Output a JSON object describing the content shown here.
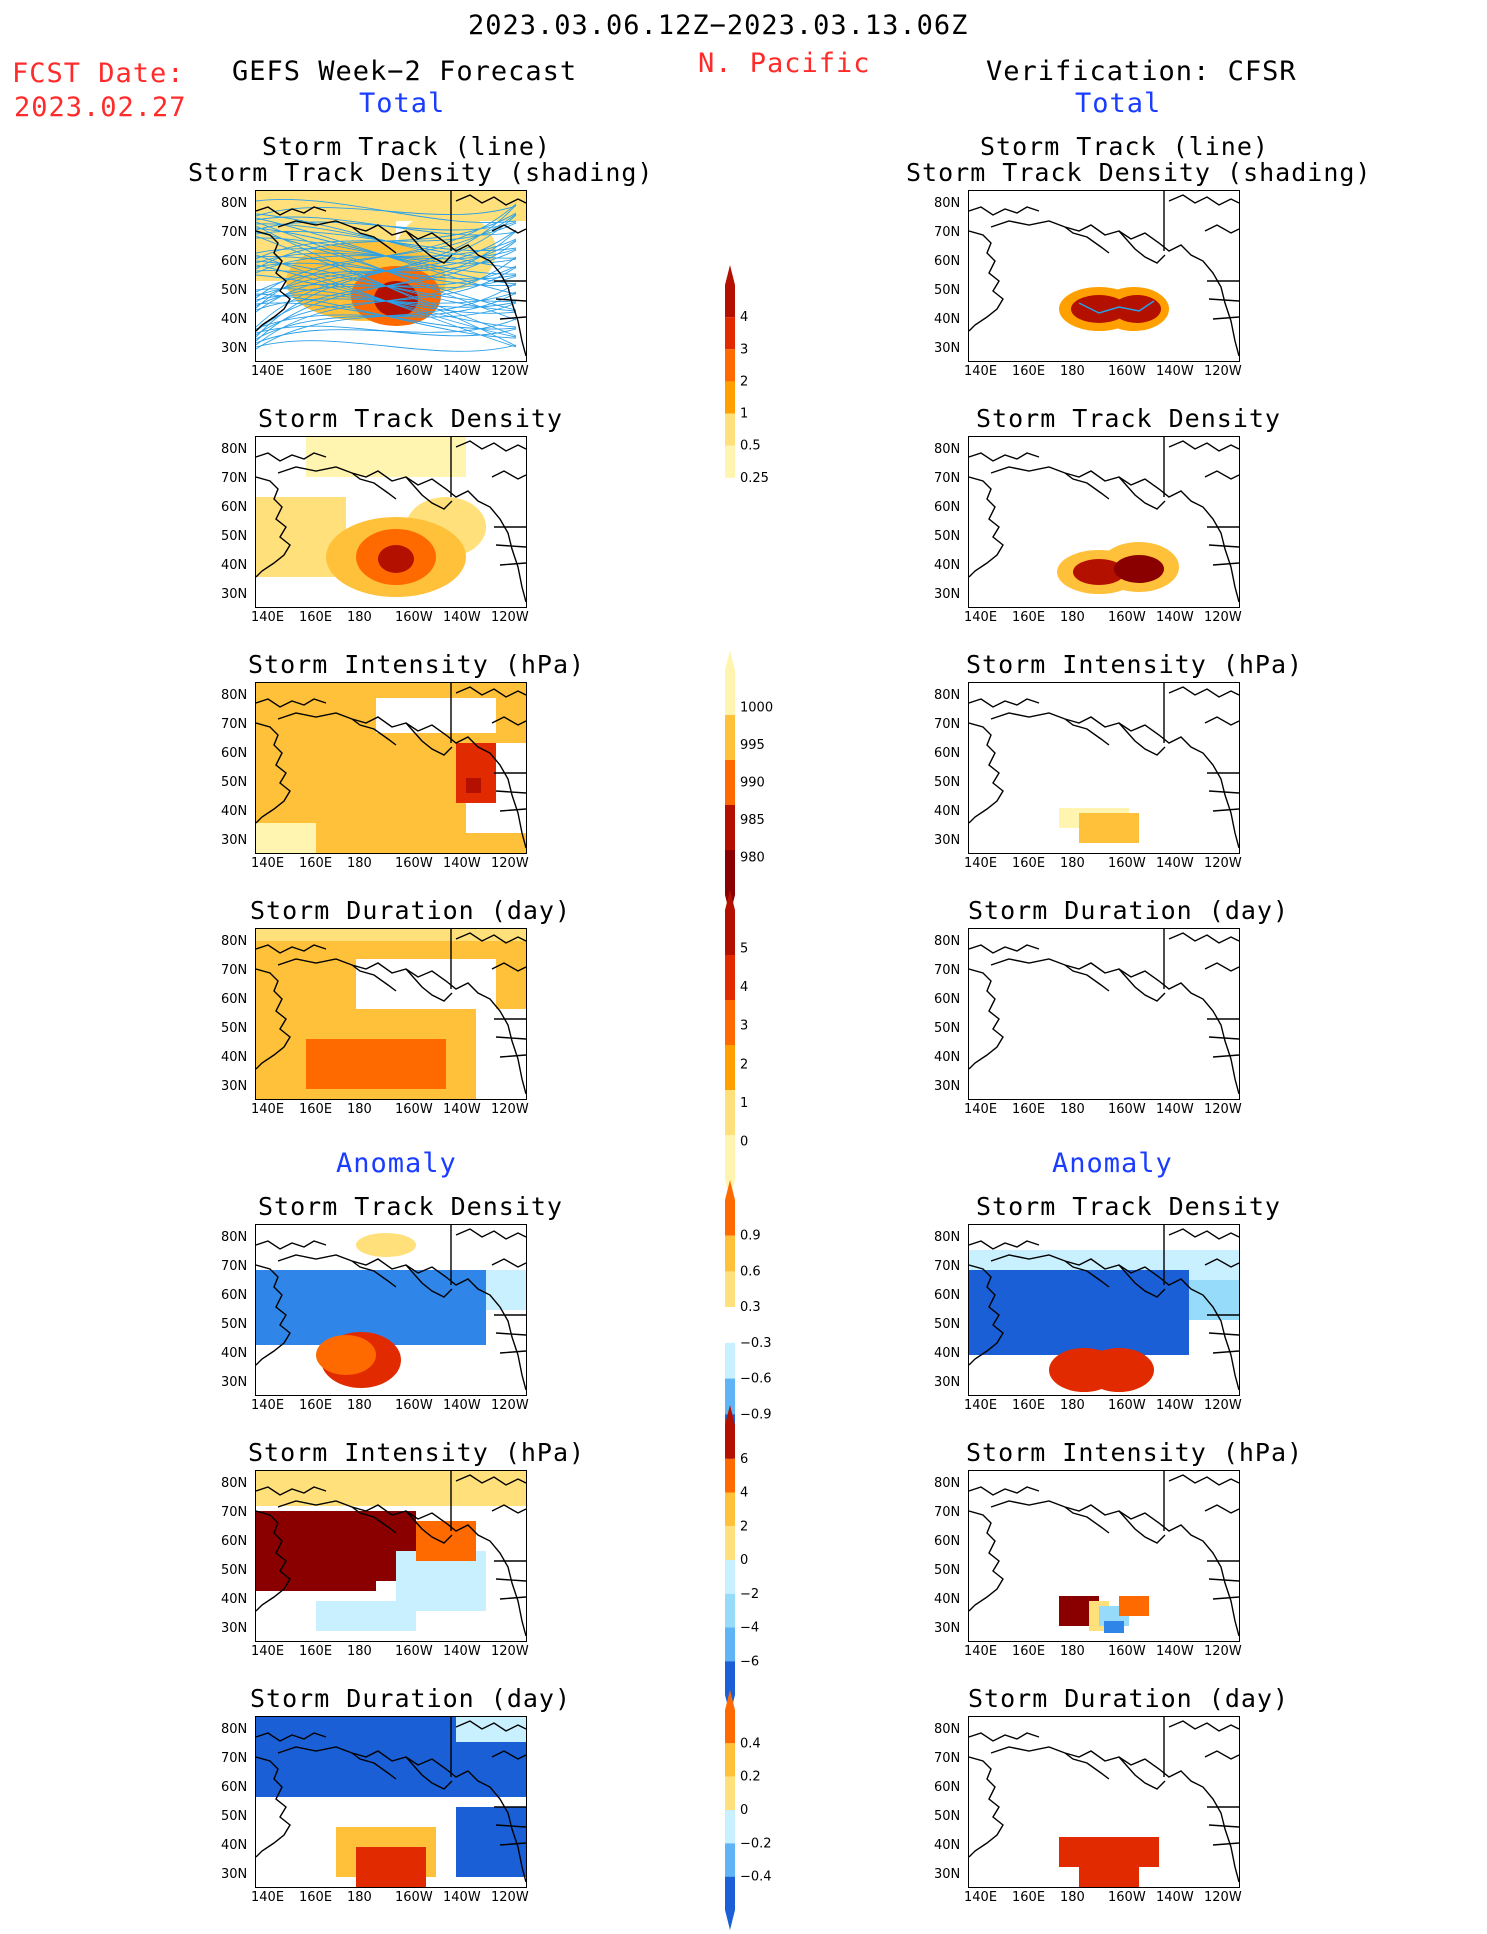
{
  "header": {
    "date_range": "2023.03.06.12Z−2023.03.13.06Z",
    "fcst_label": "FCST Date:",
    "fcst_date": "2023.02.27",
    "forecast_title": "GEFS Week−2 Forecast",
    "region": "N. Pacific",
    "verification_title": "Verification: CFSR",
    "total_left": "Total",
    "total_right": "Total",
    "anomaly_left": "Anomaly",
    "anomaly_right": "Anomaly"
  },
  "panel_titles": {
    "track_line": "Storm Track (line)",
    "track_shading": "Storm Track Density (shading)",
    "density": "Storm Track Density",
    "intensity": "Storm Intensity (hPa)",
    "duration": "Storm Duration (day)"
  },
  "axes": {
    "lat_ticks": [
      "80N",
      "70N",
      "60N",
      "50N",
      "40N",
      "30N"
    ],
    "lon_ticks": [
      "140E",
      "160E",
      "180",
      "160W",
      "140W",
      "120W"
    ]
  },
  "colors": {
    "warm": [
      "#fff5b0",
      "#ffe07a",
      "#ffc03a",
      "#ffa000",
      "#ff6a00",
      "#e22a00",
      "#b41000",
      "#8a0000"
    ],
    "cool": [
      "#c9f0ff",
      "#96dcfa",
      "#5fb4f5",
      "#2f86e8",
      "#1a5fd6"
    ],
    "track_line": "#2aa0e8",
    "header_red": "#ff2a2a",
    "header_blue": "#1a3cff"
  },
  "chart_data": [
    {
      "type": "heatmap",
      "region": "N. Pacific",
      "colorbar_id": "density_total",
      "levels": [
        0.25,
        0.5,
        1,
        2,
        3,
        4
      ],
      "note_values": "max shaded level per field (data units)",
      "panels": {
        "gefs_track_density_shading": {
          "max": 4,
          "center_lat": 40,
          "center_lon": "170W"
        },
        "cfsr_track_density_shading": {
          "max": 4,
          "center_lat": 37,
          "center_lon": "160W"
        },
        "gefs_track_density": {
          "max": 4,
          "center_lat": 40,
          "center_lon": "170W"
        },
        "cfsr_track_density": {
          "max": 4,
          "center_lat": 37,
          "center_lon": "160W"
        }
      }
    },
    {
      "type": "heatmap",
      "colorbar_id": "intensity_total",
      "levels": [
        1000,
        995,
        990,
        985,
        980
      ],
      "panels": {
        "gefs_intensity": {
          "min": 985,
          "typical": 995
        },
        "cfsr_intensity": {
          "min": 995,
          "typical": 1000
        }
      }
    },
    {
      "type": "heatmap",
      "colorbar_id": "duration_total",
      "levels": [
        0,
        1,
        2,
        3,
        4,
        5
      ],
      "panels": {
        "gefs_duration": {
          "max": 3,
          "typical": 2
        },
        "cfsr_duration": {
          "max": 0
        }
      }
    },
    {
      "type": "heatmap",
      "colorbar_id": "density_anomaly",
      "levels": [
        -0.9,
        -0.6,
        -0.3,
        0.3,
        0.6,
        0.9
      ],
      "panels": {
        "gefs_density_anom": {
          "min": -0.9,
          "max": 0.9
        },
        "cfsr_density_anom": {
          "min": -0.9,
          "max": 0.9
        }
      }
    },
    {
      "type": "heatmap",
      "colorbar_id": "intensity_anomaly",
      "levels": [
        -6,
        -4,
        -2,
        0,
        2,
        4,
        6
      ],
      "panels": {
        "gefs_intensity_anom": {
          "min": -4,
          "max": 6
        },
        "cfsr_intensity_anom": {
          "min": -6,
          "max": 6
        }
      }
    },
    {
      "type": "heatmap",
      "colorbar_id": "duration_anomaly",
      "levels": [
        -0.4,
        -0.2,
        0,
        0.2,
        0.4
      ],
      "panels": {
        "gefs_duration_anom": {
          "min": -0.4,
          "max": 0.4
        },
        "cfsr_duration_anom": {
          "min": 0,
          "max": 0.4
        }
      }
    }
  ],
  "colorbars": {
    "density_total": [
      "4",
      "3",
      "2",
      "1",
      "0.5",
      "0.25"
    ],
    "intensity_total": [
      "1000",
      "995",
      "990",
      "985",
      "980"
    ],
    "duration_total": [
      "5",
      "4",
      "3",
      "2",
      "1",
      "0"
    ],
    "density_anomaly": [
      "0.9",
      "0.6",
      "0.3",
      "−0.3",
      "−0.6",
      "−0.9"
    ],
    "intensity_anomaly": [
      "6",
      "4",
      "2",
      "0",
      "−2",
      "−4",
      "−6"
    ],
    "duration_anomaly": [
      "0.4",
      "0.2",
      "0",
      "−0.2",
      "−0.4"
    ]
  }
}
